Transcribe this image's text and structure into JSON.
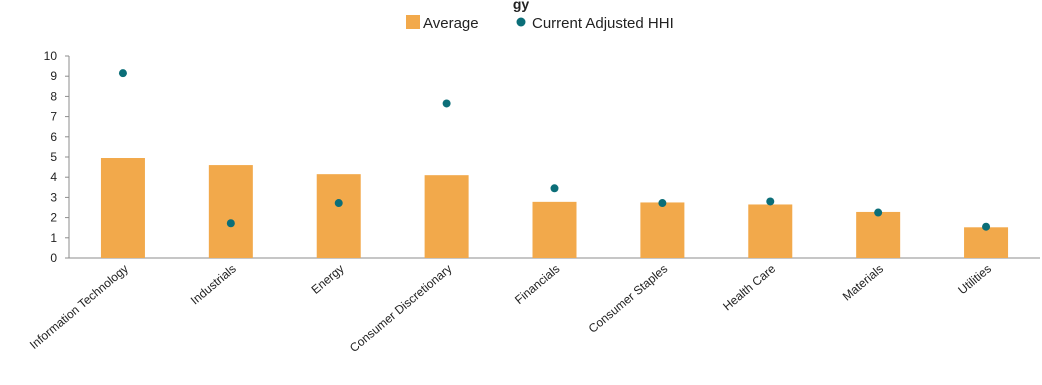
{
  "chart_data": {
    "type": "bar",
    "title": "",
    "title_partial": "gy",
    "categories": [
      "Information Technology",
      "Industrials",
      "Energy",
      "Consumer Discretionary",
      "Financials",
      "Consumer Staples",
      "Health Care",
      "Materials",
      "Utilities"
    ],
    "series": [
      {
        "name": "Average",
        "type": "bar",
        "color": "#f2a94b",
        "values": [
          4.95,
          4.6,
          4.15,
          4.1,
          2.78,
          2.75,
          2.65,
          2.28,
          1.52
        ]
      },
      {
        "name": "Current Adjusted HHI",
        "type": "scatter",
        "color": "#0b6e78",
        "values": [
          9.15,
          1.72,
          2.72,
          7.65,
          3.45,
          2.72,
          2.8,
          2.25,
          1.55
        ]
      }
    ],
    "yticks": [
      "0",
      "1",
      "2",
      "3",
      "4",
      "5",
      "6",
      "7",
      "8",
      "9",
      "10"
    ],
    "ylim": [
      0,
      10
    ],
    "grid": false,
    "legend_position": "top"
  }
}
